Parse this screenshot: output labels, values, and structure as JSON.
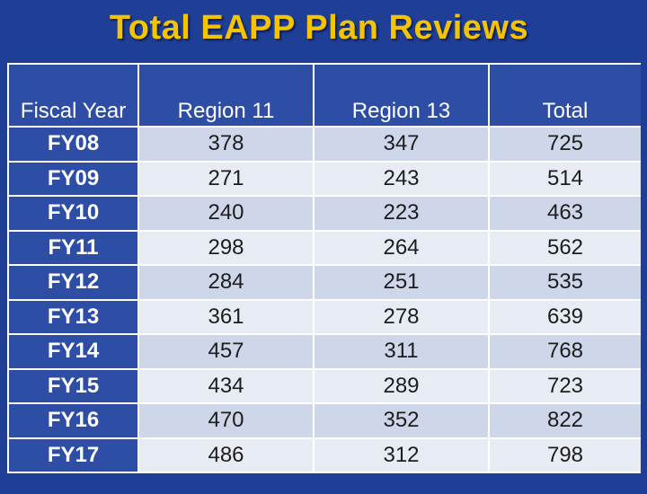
{
  "title": "Total EAPP Plan Reviews",
  "table": {
    "headers": [
      "Fiscal Year",
      "Region 11",
      "Region 13",
      "Total"
    ],
    "rows": [
      {
        "year": "FY08",
        "r11": "378",
        "r13": "347",
        "total": "725"
      },
      {
        "year": "FY09",
        "r11": "271",
        "r13": "243",
        "total": "514"
      },
      {
        "year": "FY10",
        "r11": "240",
        "r13": "223",
        "total": "463"
      },
      {
        "year": "FY11",
        "r11": "298",
        "r13": "264",
        "total": "562"
      },
      {
        "year": "FY12",
        "r11": "284",
        "r13": "251",
        "total": "535"
      },
      {
        "year": "FY13",
        "r11": "361",
        "r13": "278",
        "total": "639"
      },
      {
        "year": "FY14",
        "r11": "457",
        "r13": "311",
        "total": "768"
      },
      {
        "year": "FY15",
        "r11": "434",
        "r13": "289",
        "total": "723"
      },
      {
        "year": "FY16",
        "r11": "470",
        "r13": "352",
        "total": "822"
      },
      {
        "year": "FY17",
        "r11": "486",
        "r13": "312",
        "total": "798"
      }
    ]
  },
  "colors": {
    "background": "#1f3f97",
    "title": "#f5c400",
    "row_odd": "#cdd7e9",
    "row_even": "#e7ecf4",
    "highlight_text": "#e0121f"
  }
}
